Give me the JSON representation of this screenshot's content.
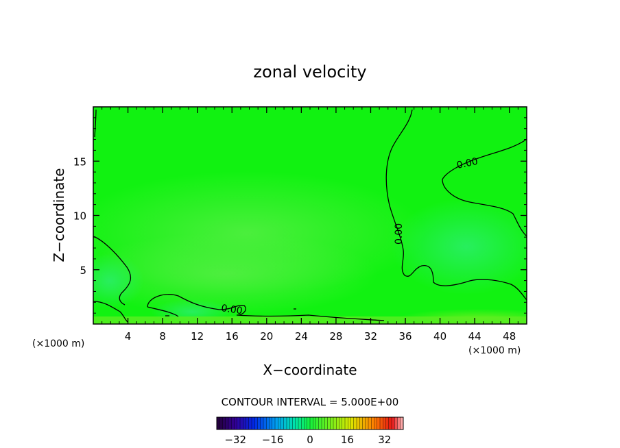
{
  "chart_data": {
    "type": "heatmap",
    "title": "zonal velocity",
    "xlabel": "X−coordinate",
    "ylabel": "Z−coordinate",
    "x_units_left": "(×1000 m)",
    "x_units_right": "(×1000 m)",
    "xlim": [
      0,
      50
    ],
    "ylim": [
      0,
      20
    ],
    "x_ticks": [
      4,
      8,
      12,
      16,
      20,
      24,
      28,
      32,
      36,
      40,
      44,
      48
    ],
    "y_ticks": [
      5,
      10,
      15
    ],
    "contour_level_label": "0.00",
    "contour_interval_text": "CONTOUR INTERVAL = 5.000E+00",
    "colorbar": {
      "min": -40,
      "max": 40,
      "ticks": [
        -32,
        -16,
        0,
        16,
        32
      ],
      "tick_labels": [
        "−32",
        "−16",
        "0",
        "16",
        "32"
      ]
    },
    "fill_colors": {
      "base": "#11f211",
      "light": "#3cf03a",
      "blue_green": "#2aee66",
      "yellow_green": "#66ee22"
    }
  }
}
